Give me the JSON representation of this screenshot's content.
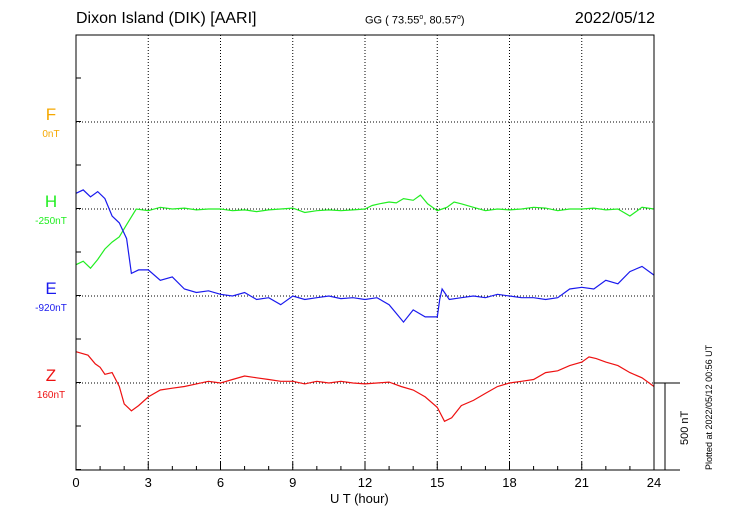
{
  "header": {
    "station": "Dixon Island (DIK)  [AARI]",
    "coords_prefix": "GG ( 73.55",
    "coords_mid": ",  80.57",
    "coords_suffix": ")",
    "date": "2022/05/12"
  },
  "plotted_note": "Plotted at 2022/05/12 00:56 UT",
  "scale_bar_label": "500 nT",
  "chart_data": {
    "type": "line",
    "xlabel": "U T (hour)",
    "xlim": [
      0,
      24
    ],
    "xticks": [
      "0",
      "3",
      "6",
      "9",
      "12",
      "15",
      "18",
      "21",
      "24"
    ],
    "scale_bar_nT": 500,
    "grid": true,
    "series": [
      {
        "name": "F",
        "baseline_label": "0nT",
        "color": "#f5a800",
        "x": [],
        "values": []
      },
      {
        "name": "H",
        "baseline_label": "-250nT",
        "color": "#22ee22",
        "x": [
          0,
          0.3,
          0.6,
          0.9,
          1.2,
          1.5,
          1.8,
          2.1,
          2.5,
          3,
          3.5,
          4,
          4.5,
          5,
          5.5,
          6,
          6.5,
          7,
          7.5,
          8,
          8.5,
          9,
          9.5,
          10,
          10.5,
          11,
          11.5,
          12,
          12.3,
          12.6,
          13,
          13.3,
          13.6,
          14,
          14.3,
          14.6,
          15,
          15.2,
          15.4,
          15.7,
          16,
          16.5,
          17,
          17.5,
          18,
          18.5,
          19,
          19.5,
          20,
          20.5,
          21,
          21.5,
          22,
          22.5,
          23,
          23.5,
          24
        ],
        "values": [
          -320,
          -300,
          -340,
          -290,
          -230,
          -190,
          -160,
          -90,
          0,
          -10,
          10,
          0,
          5,
          -5,
          0,
          0,
          -10,
          -5,
          -15,
          -5,
          0,
          5,
          -20,
          -10,
          -5,
          -10,
          -5,
          0,
          20,
          30,
          40,
          35,
          60,
          50,
          80,
          30,
          -10,
          0,
          10,
          40,
          30,
          10,
          -10,
          0,
          -5,
          0,
          10,
          5,
          -10,
          0,
          0,
          5,
          -5,
          0,
          -40,
          10,
          0
        ]
      },
      {
        "name": "E",
        "baseline_label": "-920nT",
        "color": "#1a1aee",
        "x": [
          0,
          0.3,
          0.6,
          0.9,
          1.2,
          1.5,
          1.8,
          2.1,
          2.3,
          2.6,
          3,
          3.5,
          4,
          4.5,
          5,
          5.5,
          6,
          6.5,
          7,
          7.5,
          8,
          8.5,
          9,
          9.5,
          10,
          10.5,
          11,
          11.5,
          12,
          12.5,
          13,
          13.3,
          13.6,
          14,
          14.5,
          15,
          15.1,
          15.2,
          15.5,
          16,
          16.5,
          17,
          17.5,
          18,
          18.5,
          19,
          19.5,
          20,
          20.5,
          21,
          21.5,
          22,
          22.5,
          23,
          23.5,
          24
        ],
        "values": [
          590,
          610,
          570,
          600,
          560,
          460,
          420,
          330,
          130,
          150,
          150,
          90,
          110,
          40,
          20,
          30,
          10,
          0,
          20,
          -20,
          -10,
          -50,
          0,
          -20,
          -10,
          0,
          -15,
          -10,
          -20,
          -10,
          -50,
          -100,
          -150,
          -80,
          -120,
          -120,
          -20,
          40,
          -20,
          -10,
          0,
          -10,
          10,
          0,
          -10,
          -10,
          -20,
          -10,
          40,
          50,
          40,
          90,
          70,
          140,
          170,
          120
        ]
      },
      {
        "name": "Z",
        "baseline_label": "160nT",
        "color": "#ee1111",
        "x": [
          0,
          0.5,
          0.8,
          1,
          1.2,
          1.5,
          1.8,
          2,
          2.3,
          2.6,
          3,
          3.5,
          4,
          4.5,
          5,
          5.5,
          6,
          6.5,
          7,
          7.5,
          8,
          8.5,
          9,
          9.5,
          10,
          10.5,
          11,
          11.5,
          12,
          12.5,
          13,
          13.5,
          14,
          14.5,
          15,
          15.3,
          15.6,
          16,
          16.5,
          17,
          17.5,
          18,
          18.5,
          19,
          19.5,
          20,
          20.5,
          21,
          21.3,
          21.6,
          22,
          22.5,
          23,
          23.5,
          24
        ],
        "values": [
          180,
          160,
          110,
          90,
          50,
          60,
          -20,
          -120,
          -160,
          -130,
          -80,
          -40,
          -30,
          -20,
          -5,
          10,
          0,
          20,
          40,
          30,
          20,
          10,
          10,
          -5,
          10,
          0,
          10,
          0,
          -5,
          0,
          5,
          -20,
          -40,
          -80,
          -140,
          -220,
          -200,
          -130,
          -100,
          -60,
          -20,
          0,
          10,
          20,
          60,
          70,
          100,
          120,
          150,
          140,
          120,
          100,
          60,
          30,
          -20
        ]
      }
    ]
  }
}
